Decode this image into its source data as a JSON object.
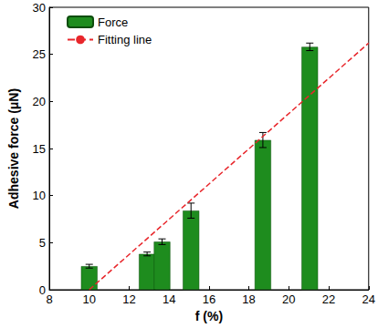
{
  "chart_data": {
    "type": "bar",
    "xlabel": "f (%)",
    "ylabel": "Adhesive force (μN)",
    "xlim": [
      8,
      24
    ],
    "xticks": [
      8,
      10,
      12,
      14,
      16,
      18,
      20,
      22,
      24
    ],
    "ylim": [
      0,
      30
    ],
    "yticks": [
      0,
      5,
      10,
      15,
      20,
      25,
      30
    ],
    "legend": "upper left",
    "series": [
      {
        "name": "Force",
        "type": "bar",
        "color": "#1e8c1e",
        "x": [
          10.0,
          12.9,
          13.65,
          15.1,
          18.7,
          21.05
        ],
        "values": [
          2.5,
          3.8,
          5.1,
          8.4,
          15.9,
          25.8
        ],
        "errors": [
          0.2,
          0.2,
          0.3,
          0.8,
          0.8,
          0.4
        ]
      },
      {
        "name": "Fitting line",
        "type": "line",
        "line_style": "dashed",
        "color": "#e8262b",
        "x": [
          10,
          24
        ],
        "values": [
          0,
          26.2
        ]
      }
    ]
  }
}
